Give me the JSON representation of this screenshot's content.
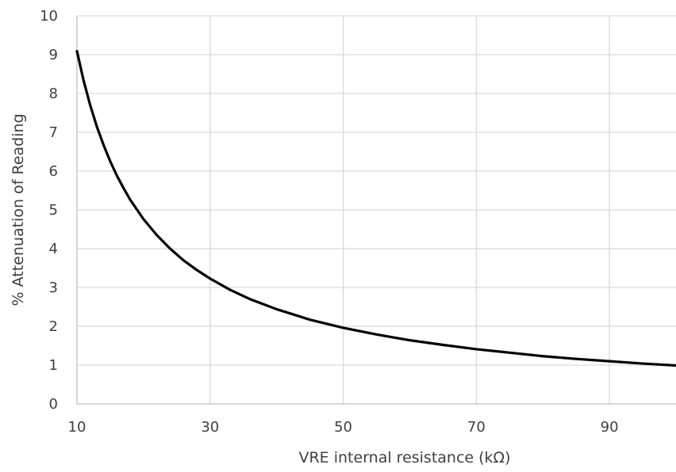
{
  "chart_data": {
    "type": "line",
    "title": "",
    "xlabel": "VRE internal resistance (kΩ)",
    "ylabel": "% Attenuation of Reading",
    "xlim": [
      10,
      100
    ],
    "ylim": [
      0,
      10
    ],
    "x_ticks": [
      10,
      30,
      50,
      70,
      90
    ],
    "y_ticks": [
      0,
      1,
      2,
      3,
      4,
      5,
      6,
      7,
      8,
      9,
      10
    ],
    "grid": true,
    "legend": "none",
    "series": [
      {
        "color": "#000000",
        "x": [
          10,
          11,
          12,
          13,
          14,
          15,
          16,
          17,
          18,
          20,
          22,
          24,
          26,
          28,
          30,
          33,
          36,
          40,
          45,
          50,
          55,
          60,
          65,
          70,
          75,
          80,
          85,
          90,
          95,
          100
        ],
        "y": [
          9.09,
          8.33,
          7.69,
          7.14,
          6.67,
          6.25,
          5.88,
          5.56,
          5.26,
          4.76,
          4.35,
          4.0,
          3.7,
          3.45,
          3.23,
          2.94,
          2.7,
          2.44,
          2.17,
          1.96,
          1.79,
          1.64,
          1.52,
          1.41,
          1.32,
          1.23,
          1.16,
          1.1,
          1.04,
          0.99
        ]
      }
    ]
  }
}
